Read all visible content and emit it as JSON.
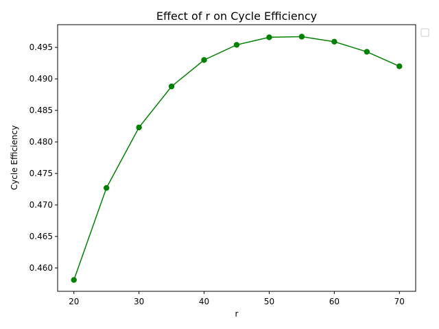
{
  "chart_data": {
    "type": "line",
    "title": "Effect of r on Cycle Efficiency",
    "xlabel": "r",
    "ylabel": "Cycle Efficiency",
    "x": [
      20,
      25,
      30,
      35,
      40,
      45,
      50,
      55,
      60,
      65,
      70
    ],
    "series": [
      {
        "values": [
          0.4581,
          0.4727,
          0.4823,
          0.4888,
          0.493,
          0.4954,
          0.4966,
          0.4967,
          0.4959,
          0.4943,
          0.492
        ],
        "color": "#008000",
        "marker": "circle"
      }
    ],
    "xlim": [
      17.5,
      72.5
    ],
    "ylim": [
      0.4563,
      0.4986
    ],
    "x_ticks": [
      20,
      30,
      40,
      50,
      60,
      70
    ],
    "x_tick_labels": [
      "20",
      "30",
      "40",
      "50",
      "60",
      "70"
    ],
    "y_ticks": [
      0.46,
      0.465,
      0.47,
      0.475,
      0.48,
      0.485,
      0.49,
      0.495
    ],
    "y_tick_labels": [
      "0.460",
      "0.465",
      "0.470",
      "0.475",
      "0.480",
      "0.485",
      "0.490",
      "0.495"
    ],
    "grid": false,
    "legend": {
      "placement": "outside-top-right",
      "entries": []
    }
  }
}
